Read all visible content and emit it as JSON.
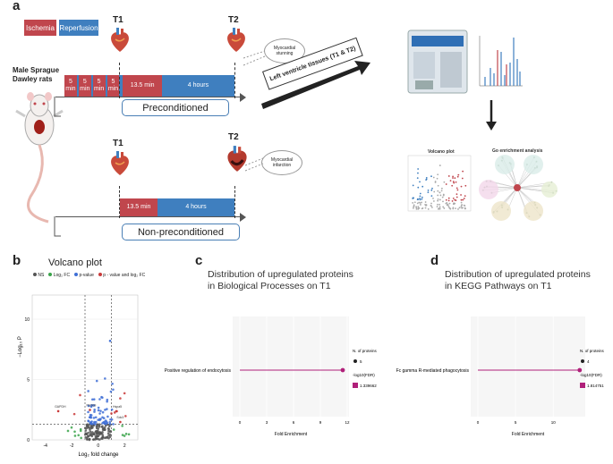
{
  "panel_a": {
    "letter": "a",
    "legend": {
      "ischemia": "Ischemia",
      "reperfusion": "Reperfusion"
    },
    "t1": "T1",
    "t2": "T2",
    "rats_label": "Male Sprague Dawley rats",
    "precond_blocks": [
      "5 min",
      "5 min",
      "5 min",
      "5 min"
    ],
    "ischemia_block": "13.5 min",
    "reperfusion_block": "4 hours",
    "preconditioned": "Preconditioned",
    "non_preconditioned": "Non-preconditioned",
    "stunning": "Myocardial stunning",
    "infarction": "Myocardial infarction",
    "tissues_label": "Left ventricle tissues (T1 & T2)",
    "volcano_small_title": "Volcano plot",
    "go_title": "Go enrichment analysis",
    "colors": {
      "ischemia": "#c0464d",
      "reperfusion": "#3f7fbf"
    }
  },
  "panel_b": {
    "letter": "b",
    "title": "Volcano plot",
    "legend": [
      "NS",
      "Log₂ FC",
      "p-value",
      "p - value and log₂ FC"
    ],
    "legend_colors": [
      "#555555",
      "#3aa34a",
      "#3f6fd6",
      "#c93a3a"
    ],
    "ylabel": "−Log₁₀ P",
    "xlabel": "Log₂ fold change",
    "annotations": [
      "GAPDH",
      "Psmb9",
      "Hspa5",
      "Sdc3"
    ]
  },
  "panel_c": {
    "letter": "c",
    "title_line1": "Distribution of upregulated proteins",
    "title_line2": "in Biological Processes on T1",
    "ylabel_item": "Positive regulation of endocytosis",
    "xlabel": "Fold Enrichment",
    "legend_n": "N. of proteins",
    "legend_n_value": "5",
    "legend_fdr": "-log10(FDR)",
    "legend_fdr_value": "1.339662"
  },
  "panel_d": {
    "letter": "d",
    "title_line1": "Distribution of upregulated proteins",
    "title_line2": "in KEGG Pathways on T1",
    "ylabel_item": "Fc gamma R-mediated phagocytosis",
    "xlabel": "Fold Enrichment",
    "legend_n": "N. of proteins",
    "legend_n_value": "4",
    "legend_fdr": "-log10(FDR)",
    "legend_fdr_value": "1.814751"
  },
  "chart_data": [
    {
      "type": "scatter",
      "title": "Volcano plot",
      "xlabel": "Log₂ fold change",
      "ylabel": "−Log₁₀ P",
      "xlim": [
        -5,
        3
      ],
      "ylim": [
        0,
        12
      ],
      "x_ticks": [
        "-4",
        "-2",
        "0",
        "2"
      ],
      "y_ticks": [
        "0",
        "5",
        "10"
      ],
      "thresholds": {
        "fc": [
          -1,
          1
        ],
        "p": 1.3
      },
      "series": [
        {
          "name": "NS",
          "count": 120
        },
        {
          "name": "Log₂ FC",
          "count": 14
        },
        {
          "name": "p-value",
          "count": 70
        },
        {
          "name": "p - value and log₂ FC",
          "count": 8
        }
      ]
    },
    {
      "type": "scatter",
      "title": "Distribution of upregulated proteins in Biological Processes on T1",
      "xlabel": "Fold Enrichment",
      "x_ticks": [
        "0",
        "3",
        "6",
        "9",
        "12"
      ],
      "xlim": [
        0,
        12
      ],
      "categories": [
        "Positive regulation of endocytosis"
      ],
      "values": [
        11.5
      ]
    },
    {
      "type": "scatter",
      "title": "Distribution of upregulated proteins in KEGG Pathways on T1",
      "xlabel": "Fold Enrichment",
      "x_ticks": [
        "0",
        "5",
        "10"
      ],
      "xlim": [
        0,
        14
      ],
      "categories": [
        "Fc gamma R-mediated phagocytosis"
      ],
      "values": [
        13.5
      ]
    }
  ]
}
